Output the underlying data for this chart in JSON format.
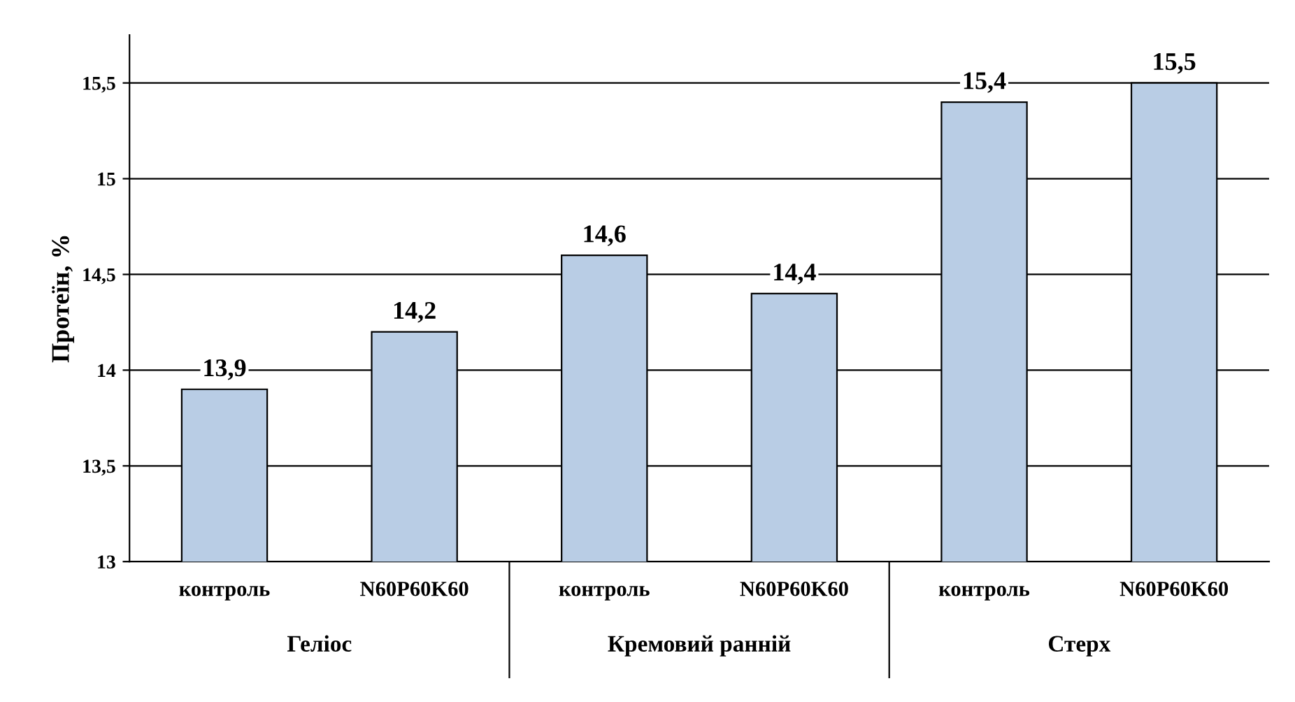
{
  "chart_data": {
    "type": "bar",
    "ylabel": "Протеїн, %",
    "categories": [
      "контроль",
      "N60P60K60",
      "контроль",
      "N60P60K60",
      "контроль",
      "N60P60K60"
    ],
    "values": [
      13.9,
      14.2,
      14.6,
      14.4,
      15.4,
      15.5
    ],
    "value_labels": [
      "13,9",
      "14,2",
      "14,6",
      "14,4",
      "15,4",
      "15,5"
    ],
    "color": "#b9cde5",
    "annotations": [
      "Геліос",
      "Кремовий ранній",
      "Стерх"
    ],
    "ylim": [
      13,
      15.75
    ],
    "yticks": [
      13,
      {
        "value": 13.5,
        "label": "13,5"
      },
      14,
      {
        "value": 14.5,
        "label": "14,5"
      },
      15,
      {
        "value": 15.5,
        "label": "15,5"
      }
    ],
    "grid": "y"
  }
}
